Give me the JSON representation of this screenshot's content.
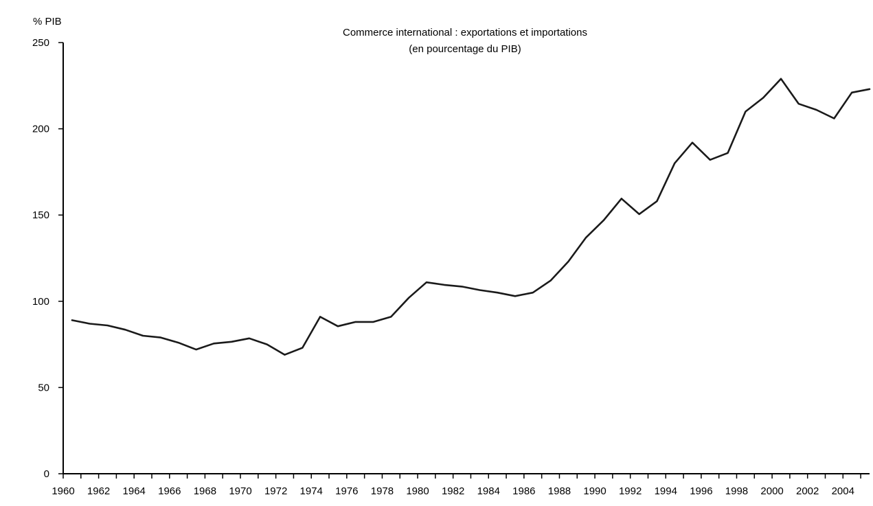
{
  "chart_data": {
    "type": "line",
    "title": "Commerce international : exportations et importations",
    "subtitle": "(en pourcentage du PIB)",
    "ylabel": "% PIB",
    "xlabel": "",
    "ylim": [
      0,
      250
    ],
    "yticks": [
      0,
      50,
      100,
      150,
      200,
      250
    ],
    "xlim": [
      1960,
      2005.5
    ],
    "xticks": [
      1960,
      1962,
      1964,
      1966,
      1968,
      1970,
      1972,
      1974,
      1976,
      1978,
      1980,
      1982,
      1984,
      1986,
      1988,
      1990,
      1992,
      1994,
      1996,
      1998,
      2000,
      2002,
      2004
    ],
    "grid": false,
    "legend": "none",
    "colors": {
      "line": "#1a1a1a",
      "axis": "#000000"
    },
    "series": [
      {
        "x": [
          1960.5,
          1961.5,
          1962.5,
          1963.5,
          1964.5,
          1965.5,
          1966.5,
          1967.5,
          1968.5,
          1969.5,
          1970.5,
          1971.5,
          1972.5,
          1973.5,
          1974.5,
          1975.5,
          1976.5,
          1977.5,
          1978.5,
          1979.5,
          1980.5,
          1981.5,
          1982.5,
          1983.5,
          1984.5,
          1985.5,
          1986.5,
          1987.5,
          1988.5,
          1989.5,
          1990.5,
          1991.5,
          1992.5,
          1993.5,
          1994.5,
          1995.5,
          1996.5,
          1997.5,
          1998.5,
          1999.5,
          2000.5,
          2001.5,
          2002.5,
          2003.5,
          2004.5,
          2005.5
        ],
        "values": [
          89,
          87,
          86,
          83.5,
          80,
          79,
          76,
          72,
          75.5,
          76.5,
          78.5,
          75,
          69,
          73,
          91,
          85.5,
          88,
          88,
          91,
          102,
          111,
          109.5,
          108.5,
          106.5,
          105,
          103,
          105,
          112,
          123,
          137,
          147,
          159.5,
          150.5,
          158,
          180,
          192,
          182,
          186,
          210,
          218,
          229,
          214.5,
          211,
          206,
          221,
          223
        ]
      }
    ]
  }
}
